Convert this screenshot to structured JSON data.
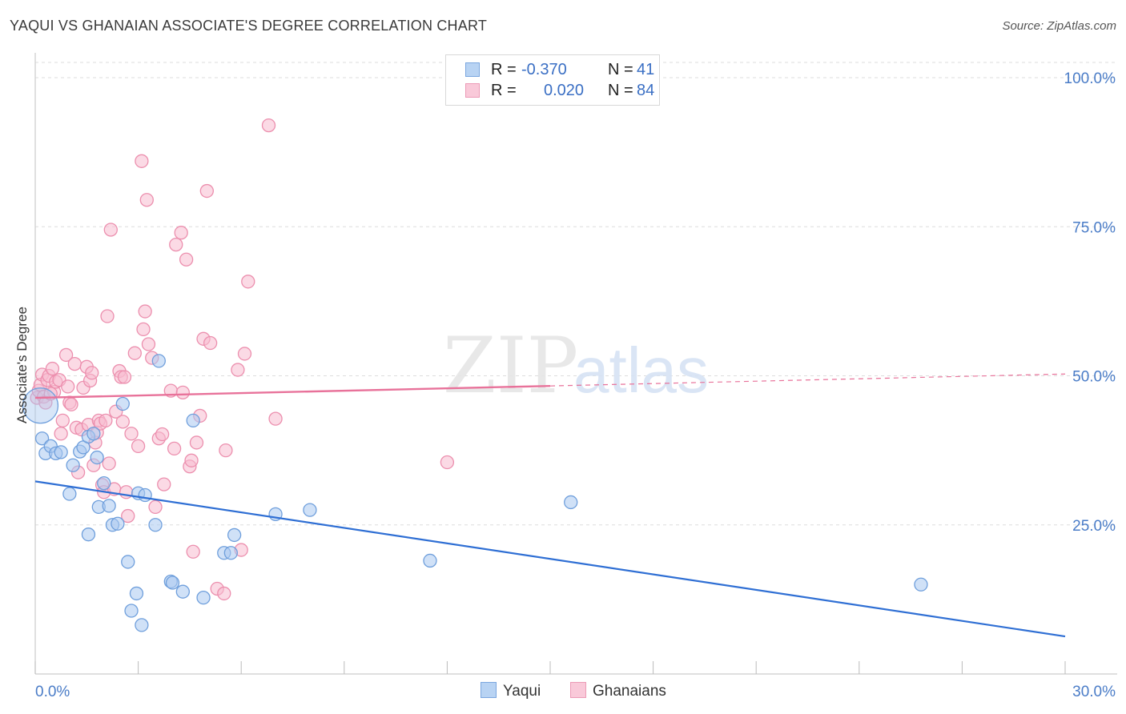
{
  "title": "YAQUI VS GHANAIAN ASSOCIATE'S DEGREE CORRELATION CHART",
  "source": "Source: ZipAtlas.com",
  "watermark": {
    "zip": "ZIP",
    "atlas": "atlas"
  },
  "legend": {
    "rows": [
      {
        "r_label": "R =",
        "r_value": "-0.370",
        "n_label": "N =",
        "n_value": "41"
      },
      {
        "r_label": "R =",
        "r_value": "0.020",
        "n_label": "N =",
        "n_value": "84"
      }
    ]
  },
  "bottom_legend": {
    "yaqui": "Yaqui",
    "ghanaians": "Ghanaians"
  },
  "colors": {
    "yaqui_fill": "#a9c8f0",
    "yaqui_stroke": "#6f9fdc",
    "yaqui_line": "#2f6fd4",
    "ghana_fill": "#f7bcd0",
    "ghana_stroke": "#ec8fae",
    "ghana_line": "#e8729a",
    "axis_text": "#4a7cc7",
    "grid": "#dddddd"
  },
  "chart_data": {
    "type": "scatter",
    "title": "YAQUI VS GHANAIAN ASSOCIATE'S DEGREE CORRELATION CHART",
    "xlabel": "",
    "ylabel": "Associate's Degree",
    "xlim": [
      0,
      30
    ],
    "ylim": [
      0,
      105
    ],
    "x_tick_labels": [
      {
        "value": 0,
        "label": "0.0%"
      },
      {
        "value": 30,
        "label": "30.0%"
      }
    ],
    "y_tick_labels": [
      {
        "value": 100,
        "label": "100.0%"
      },
      {
        "value": 75,
        "label": "75.0%"
      },
      {
        "value": 50,
        "label": "50.0%"
      },
      {
        "value": 25,
        "label": "25.0%"
      }
    ],
    "series": [
      {
        "name": "Yaqui",
        "R": -0.37,
        "N": 41,
        "trend": {
          "x": [
            0,
            30
          ],
          "y": [
            32.3,
            6.3
          ]
        },
        "points": [
          [
            0.15,
            45.0
          ],
          [
            0.2,
            39.5
          ],
          [
            0.3,
            37.0
          ],
          [
            0.45,
            38.2
          ],
          [
            0.6,
            37.0
          ],
          [
            0.75,
            37.2
          ],
          [
            1.0,
            30.2
          ],
          [
            1.1,
            35.0
          ],
          [
            1.3,
            37.3
          ],
          [
            1.4,
            38.0
          ],
          [
            1.55,
            39.8
          ],
          [
            1.55,
            23.4
          ],
          [
            1.7,
            40.3
          ],
          [
            1.8,
            36.3
          ],
          [
            1.85,
            28.0
          ],
          [
            2.0,
            32.0
          ],
          [
            2.15,
            28.2
          ],
          [
            2.25,
            25.0
          ],
          [
            2.4,
            25.2
          ],
          [
            2.55,
            45.3
          ],
          [
            2.7,
            18.8
          ],
          [
            2.8,
            10.6
          ],
          [
            2.95,
            13.5
          ],
          [
            3.0,
            30.3
          ],
          [
            3.1,
            8.2
          ],
          [
            3.2,
            30.0
          ],
          [
            3.5,
            25.0
          ],
          [
            3.6,
            52.5
          ],
          [
            3.95,
            15.5
          ],
          [
            4.0,
            15.3
          ],
          [
            4.3,
            13.8
          ],
          [
            4.6,
            42.5
          ],
          [
            4.9,
            12.8
          ],
          [
            5.5,
            20.3
          ],
          [
            5.7,
            20.3
          ],
          [
            5.8,
            23.3
          ],
          [
            7.0,
            26.8
          ],
          [
            8.0,
            27.5
          ],
          [
            11.5,
            19.0
          ],
          [
            15.6,
            28.8
          ],
          [
            25.8,
            15.0
          ]
        ]
      },
      {
        "name": "Ghanaians",
        "R": 0.02,
        "N": 84,
        "trend": {
          "x": [
            0,
            30
          ],
          "y": [
            46.3,
            50.3
          ],
          "solid_to_x": 15
        }
      }
    ]
  }
}
